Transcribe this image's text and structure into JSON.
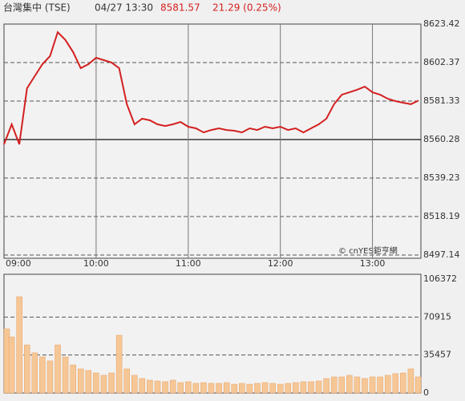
{
  "header": {
    "title": "台灣集中 (TSE)",
    "time": "04/27 13:30",
    "price": 8581.57,
    "change": "21.29 (0.25%)"
  },
  "chart_data": [
    {
      "type": "line",
      "color": "#d42020",
      "x": [
        "09:00",
        "09:05",
        "09:10",
        "09:15",
        "09:20",
        "09:25",
        "09:30",
        "09:35",
        "09:40",
        "09:45",
        "09:50",
        "09:55",
        "10:00",
        "10:05",
        "10:10",
        "10:15",
        "10:20",
        "10:25",
        "10:30",
        "10:35",
        "10:40",
        "10:45",
        "10:50",
        "10:55",
        "11:00",
        "11:05",
        "11:10",
        "11:15",
        "11:20",
        "11:25",
        "11:30",
        "11:35",
        "11:40",
        "11:45",
        "11:50",
        "11:55",
        "12:00",
        "12:05",
        "12:10",
        "12:15",
        "12:20",
        "12:25",
        "12:30",
        "12:35",
        "12:40",
        "12:45",
        "12:50",
        "12:55",
        "13:00",
        "13:05",
        "13:10",
        "13:15",
        "13:20",
        "13:25",
        "13:30"
      ],
      "values": [
        8557.7,
        8568.6,
        8557.7,
        8588.3,
        8594.9,
        8601.5,
        8605.9,
        8619.0,
        8614.7,
        8608.1,
        8599.3,
        8601.5,
        8605.0,
        8603.7,
        8602.4,
        8599.3,
        8579.6,
        8568.6,
        8571.7,
        8570.8,
        8568.6,
        8567.7,
        8568.6,
        8569.9,
        8567.3,
        8566.4,
        8564.2,
        8565.5,
        8566.4,
        8565.5,
        8565.1,
        8564.2,
        8566.4,
        8565.5,
        8567.3,
        8566.4,
        8567.3,
        8565.5,
        8566.4,
        8564.2,
        8566.4,
        8568.6,
        8571.7,
        8579.6,
        8584.8,
        8586.1,
        8587.5,
        8589.2,
        8586.1,
        8584.8,
        8582.6,
        8581.3,
        8580.4,
        8579.6,
        8581.57
      ],
      "xlim": [
        "09:00",
        "13:30"
      ],
      "xticks": [
        "09:00",
        "10:00",
        "11:00",
        "12:00",
        "13:00"
      ],
      "ylim": [
        8497.14,
        8623.42
      ],
      "yticks": [
        8497.14,
        8518.19,
        8539.23,
        8560.28,
        8581.33,
        8602.37,
        8623.42
      ],
      "reference_line": 8560.28,
      "grid": true,
      "annotation": "© cnYES鉅亨網"
    },
    {
      "type": "bar",
      "color": "#f6c796",
      "x": [
        "09:00",
        "09:05",
        "09:10",
        "09:15",
        "09:20",
        "09:25",
        "09:30",
        "09:35",
        "09:40",
        "09:45",
        "09:50",
        "09:55",
        "10:00",
        "10:05",
        "10:10",
        "10:15",
        "10:20",
        "10:25",
        "10:30",
        "10:35",
        "10:40",
        "10:45",
        "10:50",
        "10:55",
        "11:00",
        "11:05",
        "11:10",
        "11:15",
        "11:20",
        "11:25",
        "11:30",
        "11:35",
        "11:40",
        "11:45",
        "11:50",
        "11:55",
        "12:00",
        "12:05",
        "12:10",
        "12:15",
        "12:20",
        "12:25",
        "12:30",
        "12:35",
        "12:40",
        "12:45",
        "12:50",
        "12:55",
        "13:00",
        "13:05",
        "13:10",
        "13:15",
        "13:20",
        "13:25",
        "13:30"
      ],
      "values": [
        59930,
        52400,
        89900,
        44900,
        37500,
        33700,
        30000,
        44900,
        33700,
        26200,
        22500,
        21000,
        18700,
        16500,
        18700,
        53900,
        22500,
        16500,
        13500,
        12000,
        11200,
        10500,
        12000,
        9700,
        10500,
        9000,
        9700,
        9000,
        9000,
        9700,
        8200,
        9000,
        8200,
        9000,
        9700,
        9000,
        8200,
        9000,
        9700,
        10500,
        10500,
        11200,
        13500,
        15000,
        15000,
        16500,
        15000,
        13500,
        15000,
        15000,
        16500,
        18000,
        18700,
        22500,
        15000
      ],
      "xlim": [
        "09:00",
        "13:30"
      ],
      "ylim": [
        0,
        106372
      ],
      "yticks": [
        0,
        35457,
        70915,
        106372
      ],
      "grid": true
    }
  ]
}
